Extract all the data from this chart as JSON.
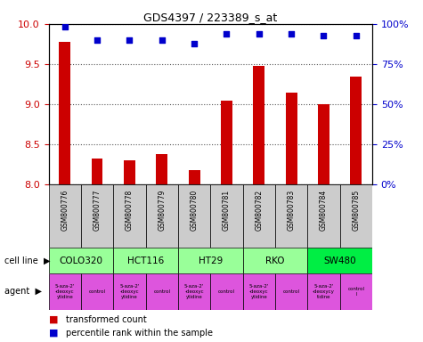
{
  "title": "GDS4397 / 223389_s_at",
  "samples": [
    "GSM800776",
    "GSM800777",
    "GSM800778",
    "GSM800779",
    "GSM800780",
    "GSM800781",
    "GSM800782",
    "GSM800783",
    "GSM800784",
    "GSM800785"
  ],
  "bar_values": [
    9.78,
    8.33,
    8.3,
    8.38,
    8.18,
    9.05,
    9.48,
    9.14,
    9.0,
    9.35
  ],
  "scatter_values": [
    98,
    90,
    90,
    90,
    88,
    94,
    94,
    94,
    93,
    93
  ],
  "ylim_left": [
    8.0,
    10.0
  ],
  "ylim_right": [
    0,
    100
  ],
  "yticks_left": [
    8.0,
    8.5,
    9.0,
    9.5,
    10.0
  ],
  "yticks_right": [
    0,
    25,
    50,
    75,
    100
  ],
  "ytick_labels_right": [
    "0%",
    "25%",
    "50%",
    "75%",
    "100%"
  ],
  "bar_color": "#cc0000",
  "scatter_color": "#0000cc",
  "grid_color": "#555555",
  "sample_bg_color": "#cccccc",
  "xlabel_color": "#cc0000",
  "ylabel_right_color": "#0000cc",
  "legend_bar_label": "transformed count",
  "legend_scatter_label": "percentile rank within the sample",
  "cell_line_label": "cell line",
  "agent_label": "agent",
  "cell_lines": [
    {
      "name": "COLO320",
      "start": 0,
      "end": 1,
      "color": "#99ff99"
    },
    {
      "name": "HCT116",
      "start": 2,
      "end": 3,
      "color": "#99ff99"
    },
    {
      "name": "HT29",
      "start": 4,
      "end": 5,
      "color": "#99ff99"
    },
    {
      "name": "RKO",
      "start": 6,
      "end": 7,
      "color": "#99ff99"
    },
    {
      "name": "SW480",
      "start": 8,
      "end": 9,
      "color": "#00ee44"
    }
  ],
  "agent_texts": [
    "5-aza-2'\n-deoxyc\nytidine",
    "control",
    "5-aza-2'\n-deoxyc\nytidine",
    "control",
    "5-aza-2'\n-deoxyc\nytidine",
    "control",
    "5-aza-2'\n-deoxyc\nytidine",
    "control",
    "5-aza-2'\n-deoxycy\ntidine",
    "control\nl"
  ],
  "agent_color": "#dd55dd",
  "bar_width": 0.35,
  "scatter_size": 20
}
